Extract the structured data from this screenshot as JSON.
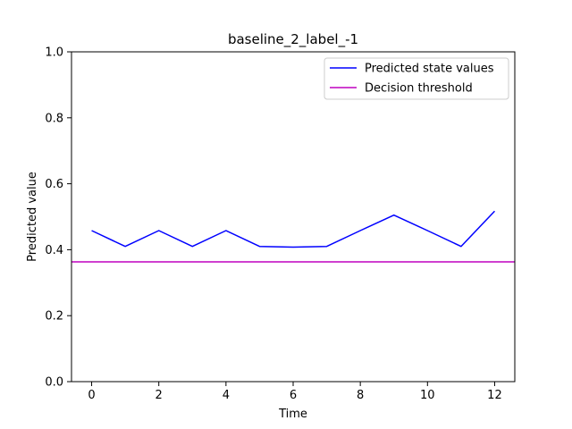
{
  "chart_data": {
    "type": "line",
    "title": "baseline_2_label_-1",
    "xlabel": "Time",
    "ylabel": "Predicted value",
    "xlim": [
      -0.6,
      12.6
    ],
    "ylim": [
      0.0,
      1.0
    ],
    "xticks": [
      "0",
      "2",
      "4",
      "6",
      "8",
      "10",
      "12"
    ],
    "xtick_values": [
      0,
      2,
      4,
      6,
      8,
      10,
      12
    ],
    "yticks": [
      "0.0",
      "0.2",
      "0.4",
      "0.6",
      "0.8",
      "1.0"
    ],
    "ytick_values": [
      0.0,
      0.2,
      0.4,
      0.6,
      0.8,
      1.0
    ],
    "grid": false,
    "legend_position": "top-right",
    "series": [
      {
        "name": "Predicted state values",
        "color": "#0000ff",
        "x": [
          0,
          1,
          2,
          3,
          4,
          5,
          6,
          7,
          8,
          9,
          10,
          11,
          12
        ],
        "y": [
          0.458,
          0.41,
          0.458,
          0.41,
          0.458,
          0.41,
          0.408,
          0.41,
          0.458,
          0.505,
          0.458,
          0.41,
          0.517
        ]
      },
      {
        "name": "Decision threshold",
        "color": "#bf00bf",
        "type": "hline",
        "y": 0.363
      }
    ]
  }
}
